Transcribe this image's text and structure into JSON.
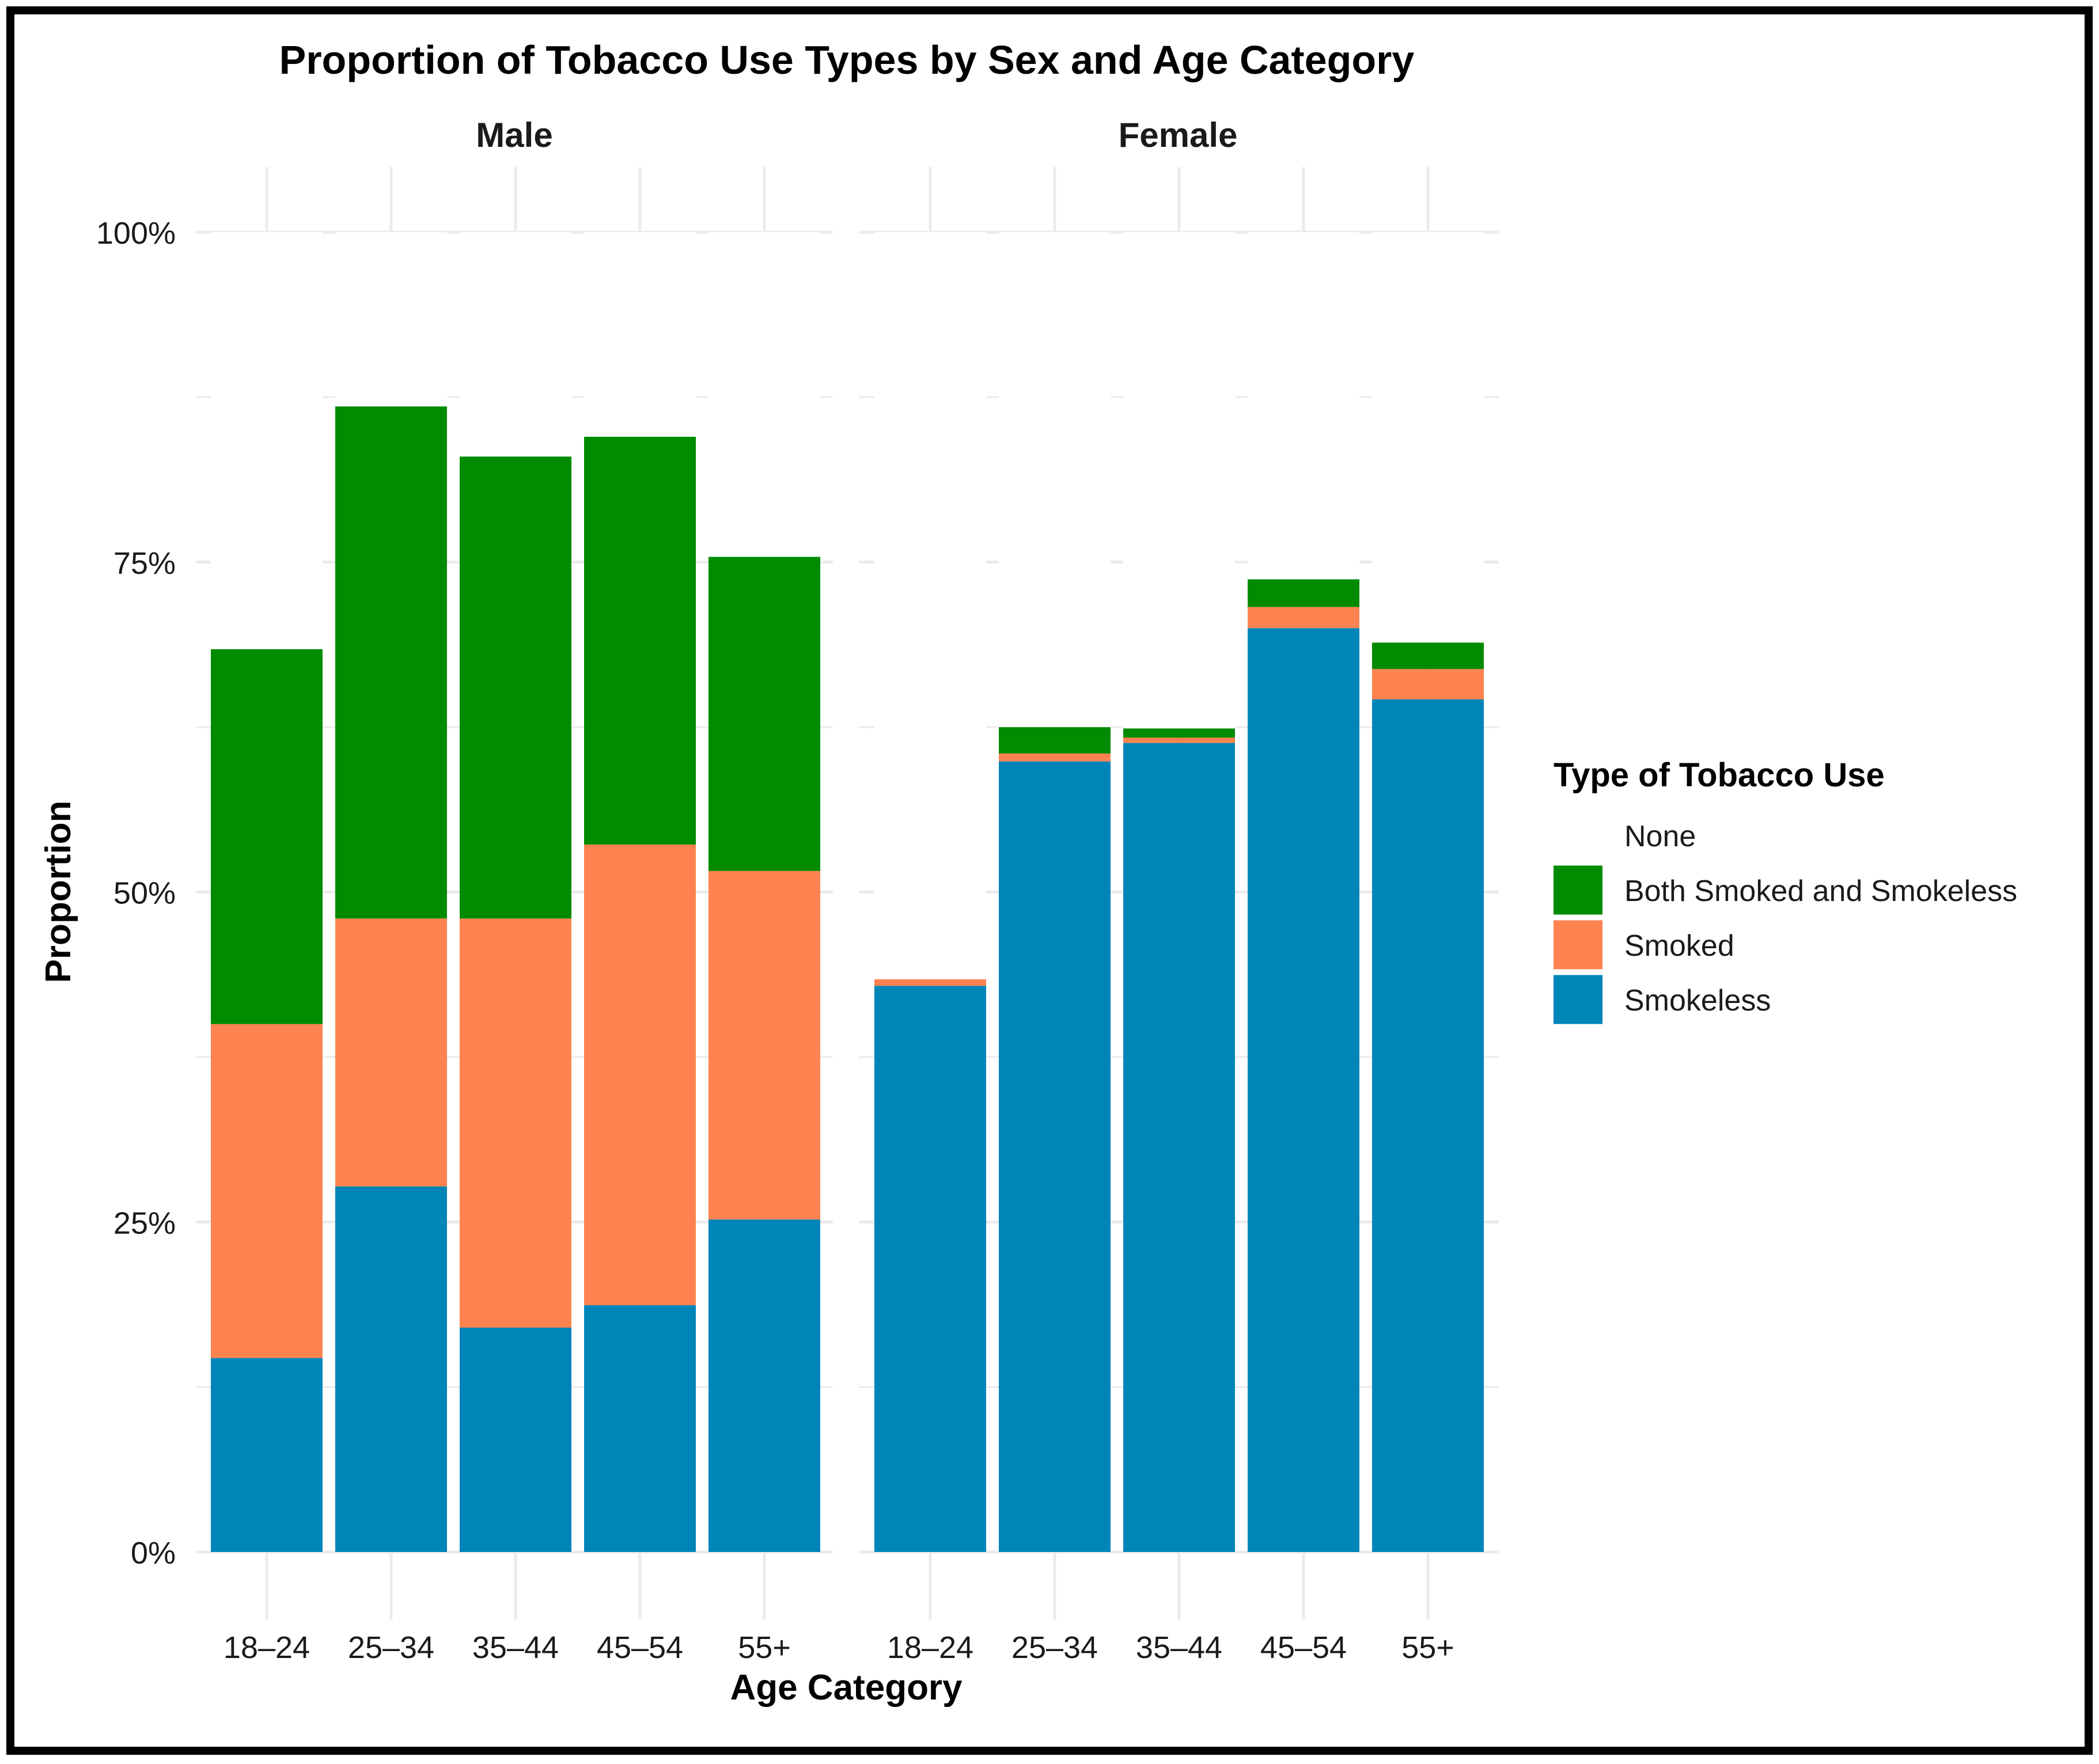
{
  "chart_data": {
    "type": "bar",
    "stacked": true,
    "title": "Proportion of Tobacco Use Types by Sex and Age Category",
    "xlabel": "Age Category",
    "ylabel": "Proportion",
    "ylim": [
      0,
      1
    ],
    "yticks": [
      0,
      0.25,
      0.5,
      0.75,
      1.0
    ],
    "ytick_labels": [
      "0%",
      "25%",
      "50%",
      "75%",
      "100%"
    ],
    "grid": true,
    "legend": {
      "title": "Type of Tobacco Use",
      "position": "right",
      "entries": [
        {
          "name": "None",
          "color": "#FFFFFF"
        },
        {
          "name": "Both Smoked and Smokeless",
          "color": "#008B00"
        },
        {
          "name": "Smoked",
          "color": "#FF8350"
        },
        {
          "name": "Smokeless",
          "color": "#0085B8"
        }
      ]
    },
    "stack_order_bottom_to_top": [
      "Smokeless",
      "Smoked",
      "Both Smoked and Smokeless",
      "None"
    ],
    "panels": [
      {
        "name": "Male",
        "categories": [
          "18–24",
          "25–34",
          "35–44",
          "45–54",
          "55+"
        ],
        "series": [
          {
            "name": "Smokeless",
            "values": [
              0.147,
              0.277,
              0.17,
              0.187,
              0.252
            ]
          },
          {
            "name": "Smoked",
            "values": [
              0.253,
              0.203,
              0.31,
              0.349,
              0.264
            ]
          },
          {
            "name": "Both Smoked and Smokeless",
            "values": [
              0.284,
              0.388,
              0.35,
              0.309,
              0.238
            ]
          },
          {
            "name": "None",
            "values": [
              0.316,
              0.132,
              0.17,
              0.155,
              0.246
            ]
          }
        ]
      },
      {
        "name": "Female",
        "categories": [
          "18–24",
          "25–34",
          "35–44",
          "45–54",
          "55+"
        ],
        "series": [
          {
            "name": "Smokeless",
            "values": [
              0.429,
              0.599,
              0.613,
              0.7,
              0.646
            ]
          },
          {
            "name": "Smoked",
            "values": [
              0.005,
              0.006,
              0.004,
              0.016,
              0.023
            ]
          },
          {
            "name": "Both Smoked and Smokeless",
            "values": [
              0.0,
              0.02,
              0.007,
              0.021,
              0.02
            ]
          },
          {
            "name": "None",
            "values": [
              0.566,
              0.375,
              0.376,
              0.263,
              0.311
            ]
          }
        ]
      }
    ]
  }
}
